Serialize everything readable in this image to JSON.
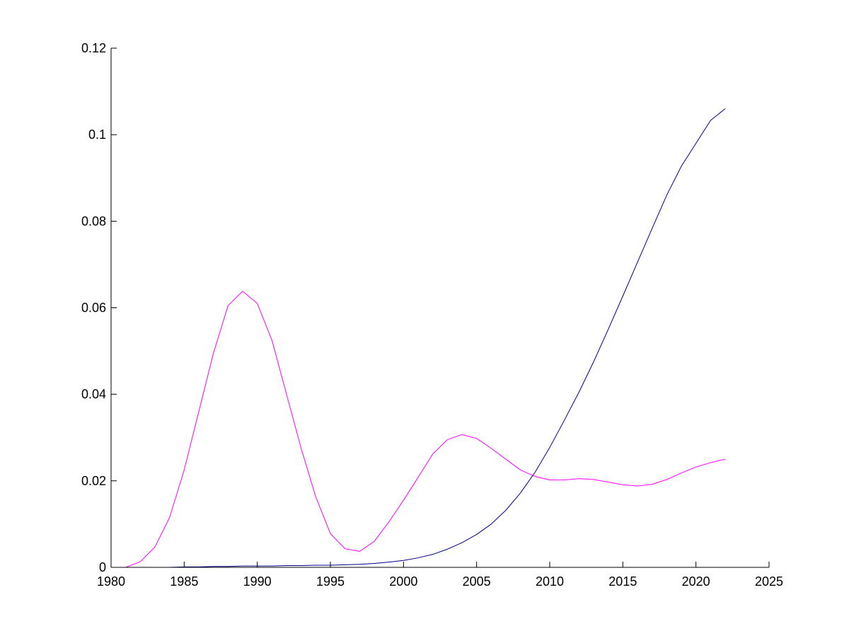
{
  "chart_data": {
    "type": "line",
    "title": "",
    "xlabel": "",
    "ylabel": "",
    "xlim": [
      1980,
      2025
    ],
    "ylim": [
      0,
      0.12
    ],
    "xticks": [
      1980,
      1985,
      1990,
      1995,
      2000,
      2005,
      2010,
      2015,
      2020,
      2025
    ],
    "xtick_labels": [
      "1980",
      "1985",
      "1990",
      "1995",
      "2000",
      "2005",
      "2010",
      "2015",
      "2020",
      "2025"
    ],
    "yticks": [
      0,
      0.02,
      0.04,
      0.06,
      0.08,
      0.1,
      0.12
    ],
    "ytick_labels": [
      "0",
      "0.02",
      "0.04",
      "0.06",
      "0.08",
      "0.1",
      "0.12"
    ],
    "grid": false,
    "legend": "none",
    "x": [
      1980,
      1981,
      1982,
      1983,
      1984,
      1985,
      1986,
      1987,
      1988,
      1989,
      1990,
      1991,
      1992,
      1993,
      1994,
      1995,
      1996,
      1997,
      1998,
      1999,
      2000,
      2001,
      2002,
      2003,
      2004,
      2005,
      2006,
      2007,
      2008,
      2009,
      2010,
      2011,
      2012,
      2013,
      2014,
      2015,
      2016,
      2017,
      2018,
      2019,
      2020,
      2021,
      2022
    ],
    "series": [
      {
        "color": "#ff00ff",
        "values": [
          0,
          0,
          0.0013,
          0.0047,
          0.0115,
          0.0225,
          0.036,
          0.0495,
          0.0605,
          0.0638,
          0.061,
          0.0525,
          0.04,
          0.0275,
          0.0163,
          0.0078,
          0.0043,
          0.0037,
          0.006,
          0.0105,
          0.0155,
          0.0208,
          0.0262,
          0.0295,
          0.0307,
          0.0298,
          0.0275,
          0.025,
          0.0225,
          0.021,
          0.0202,
          0.0202,
          0.0205,
          0.0203,
          0.0197,
          0.0191,
          0.0188,
          0.0192,
          0.0203,
          0.0218,
          0.0232,
          0.0242,
          0.025
        ]
      },
      {
        "color": "#00008b",
        "values": [
          0,
          0,
          0,
          0,
          0,
          0.0001,
          0.0001,
          0.0002,
          0.0002,
          0.0003,
          0.0003,
          0.0003,
          0.0004,
          0.0004,
          0.0005,
          0.0005,
          0.0006,
          0.0007,
          0.0009,
          0.0012,
          0.0016,
          0.0022,
          0.003,
          0.0042,
          0.0057,
          0.0076,
          0.01,
          0.0132,
          0.0172,
          0.022,
          0.0277,
          0.034,
          0.0405,
          0.0475,
          0.055,
          0.0627,
          0.0705,
          0.0783,
          0.086,
          0.0927,
          0.098,
          0.1033,
          0.106
        ]
      }
    ]
  }
}
